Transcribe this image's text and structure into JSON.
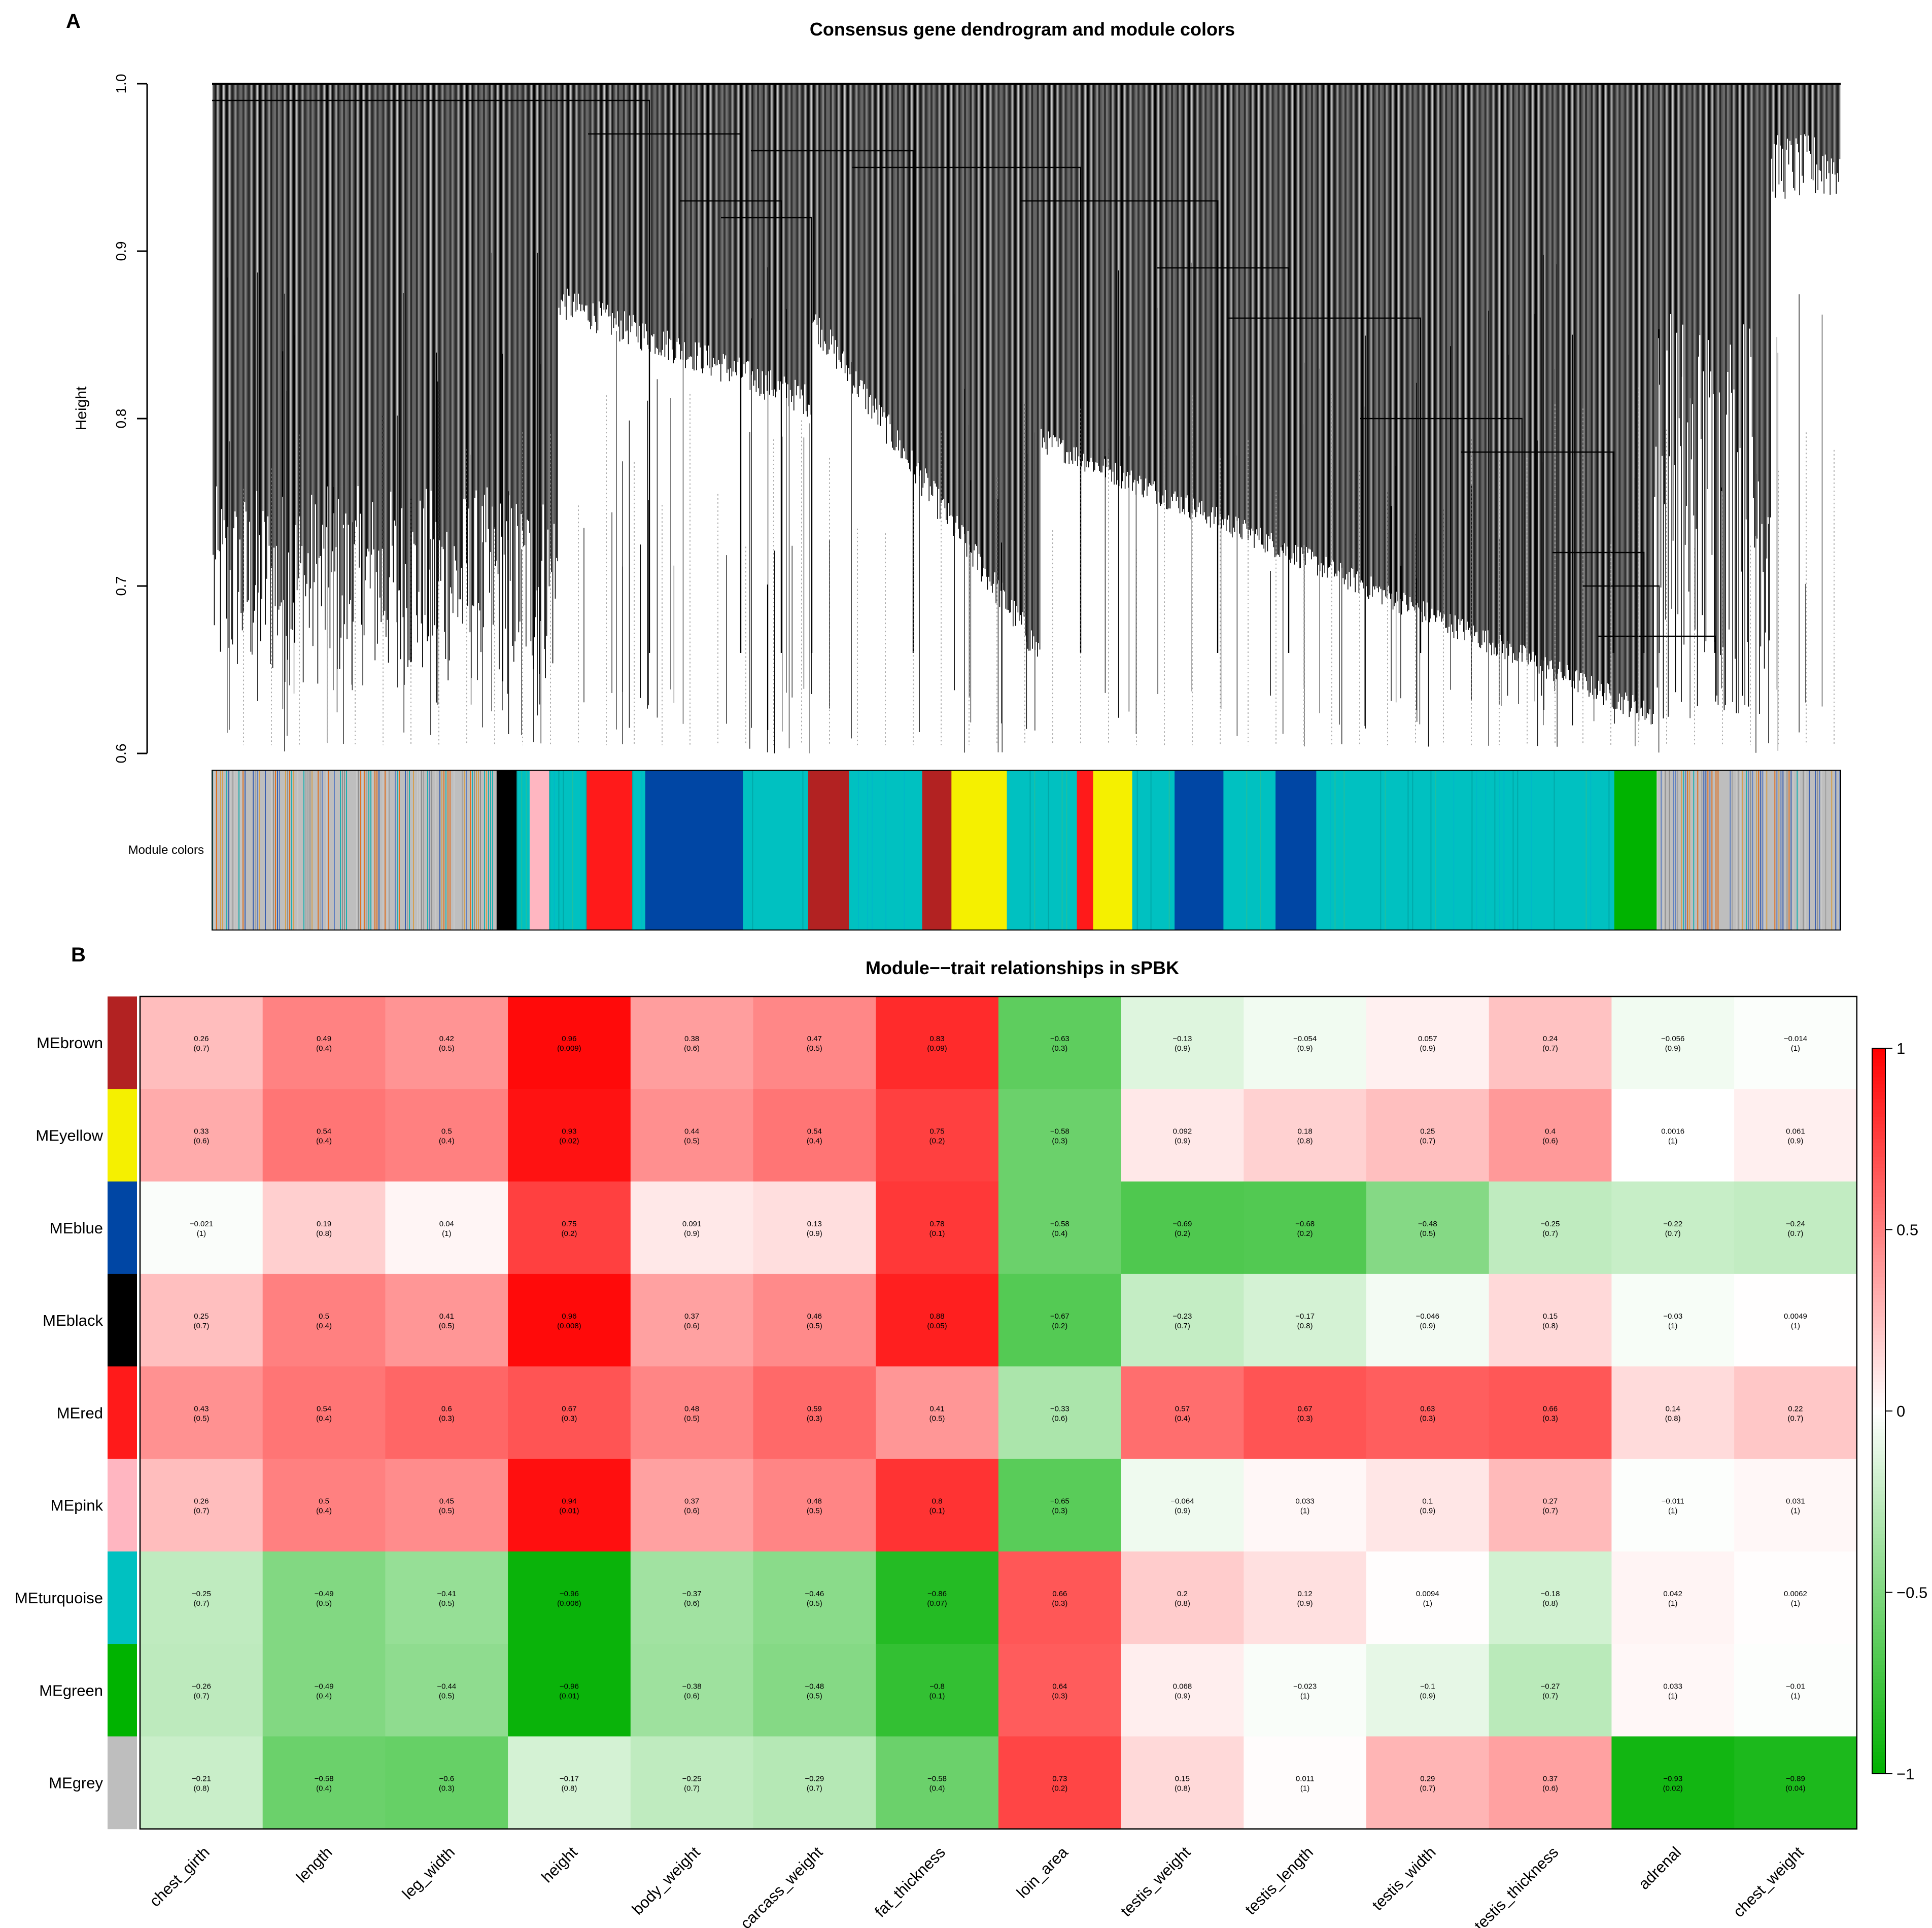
{
  "panel_a": {
    "letter": "A",
    "title": "Consensus gene dendrogram and module colors",
    "ylabel": "Height",
    "yticks": [
      "0.6",
      "0.7",
      "0.8",
      "0.9",
      "1.0"
    ],
    "module_colors_label": "Module colors"
  },
  "panel_b": {
    "letter": "B",
    "title": "Module−−trait relationships in sPBK"
  },
  "colors": {
    "brown": "#b22222",
    "yellow": "#f5f000",
    "blue": "#0046a4",
    "black": "#000000",
    "red": "#ff1a1a",
    "pink": "#ffb6c1",
    "turquoise": "#00c1c1",
    "green": "#00b300",
    "grey": "#bebebe",
    "heat_high": "#ff0000",
    "heat_mid": "#ffffff",
    "heat_low": "#00b000"
  },
  "chart_data": [
    {
      "type": "dendrogram",
      "title": "Consensus gene dendrogram and module colors",
      "ylabel": "Height",
      "ylim": [
        0.6,
        1.0
      ],
      "module_color_bands": [
        {
          "color": "grey",
          "width": 0.175
        },
        {
          "color": "black",
          "width": 0.012
        },
        {
          "color": "turquoise",
          "width": 0.008
        },
        {
          "color": "pink",
          "width": 0.012
        },
        {
          "color": "turquoise",
          "width": 0.023
        },
        {
          "color": "red",
          "width": 0.028
        },
        {
          "color": "turquoise",
          "width": 0.008
        },
        {
          "color": "blue",
          "width": 0.06
        },
        {
          "color": "turquoise",
          "width": 0.04
        },
        {
          "color": "brown",
          "width": 0.025
        },
        {
          "color": "turquoise",
          "width": 0.045
        },
        {
          "color": "brown",
          "width": 0.018
        },
        {
          "color": "yellow",
          "width": 0.034
        },
        {
          "color": "turquoise",
          "width": 0.043
        },
        {
          "color": "red",
          "width": 0.01
        },
        {
          "color": "yellow",
          "width": 0.024
        },
        {
          "color": "turquoise",
          "width": 0.026
        },
        {
          "color": "blue",
          "width": 0.03
        },
        {
          "color": "turquoise",
          "width": 0.032
        },
        {
          "color": "blue",
          "width": 0.025
        },
        {
          "color": "turquoise",
          "width": 0.183
        },
        {
          "color": "green",
          "width": 0.026
        },
        {
          "color": "grey",
          "width": 0.113
        }
      ]
    },
    {
      "type": "heatmap",
      "title": "Module−−trait relationships in sPBK",
      "rows": [
        "MEbrown",
        "MEyellow",
        "MEblue",
        "MEblack",
        "MEred",
        "MEpink",
        "MEturquoise",
        "MEgreen",
        "MEgrey"
      ],
      "row_colors": [
        "brown",
        "yellow",
        "blue",
        "black",
        "red",
        "pink",
        "turquoise",
        "green",
        "grey"
      ],
      "columns": [
        "chest_girth",
        "length",
        "leg_width",
        "height",
        "body_weight",
        "carcass_weight",
        "fat_thickness",
        "loin_area",
        "testis_weight",
        "testis_length",
        "testis_width",
        "testis_thickness",
        "adrenal",
        "chest_weight"
      ],
      "values": [
        [
          0.26,
          0.49,
          0.42,
          0.96,
          0.38,
          0.47,
          0.83,
          -0.63,
          -0.13,
          -0.054,
          0.057,
          0.24,
          -0.056,
          -0.014
        ],
        [
          0.33,
          0.54,
          0.5,
          0.93,
          0.44,
          0.54,
          0.75,
          -0.58,
          0.092,
          0.18,
          0.25,
          0.4,
          0.0016,
          0.061
        ],
        [
          -0.021,
          0.19,
          0.04,
          0.75,
          0.091,
          0.13,
          0.78,
          -0.58,
          -0.69,
          -0.68,
          -0.48,
          -0.25,
          -0.22,
          -0.24
        ],
        [
          0.25,
          0.5,
          0.41,
          0.96,
          0.37,
          0.46,
          0.88,
          -0.67,
          -0.23,
          -0.17,
          -0.046,
          0.15,
          -0.03,
          0.0049
        ],
        [
          0.43,
          0.54,
          0.6,
          0.67,
          0.48,
          0.59,
          0.41,
          -0.33,
          0.57,
          0.67,
          0.63,
          0.66,
          0.14,
          0.22
        ],
        [
          0.26,
          0.5,
          0.45,
          0.94,
          0.37,
          0.48,
          0.8,
          -0.65,
          -0.064,
          0.033,
          0.1,
          0.27,
          -0.011,
          0.031
        ],
        [
          -0.25,
          -0.49,
          -0.41,
          -0.96,
          -0.37,
          -0.46,
          -0.86,
          0.66,
          0.2,
          0.12,
          0.0094,
          -0.18,
          0.042,
          0.0062
        ],
        [
          -0.26,
          -0.49,
          -0.44,
          -0.96,
          -0.38,
          -0.48,
          -0.8,
          0.64,
          0.068,
          -0.023,
          -0.1,
          -0.27,
          0.033,
          -0.01
        ],
        [
          -0.21,
          -0.58,
          -0.6,
          -0.17,
          -0.25,
          -0.29,
          -0.58,
          0.73,
          0.15,
          0.011,
          0.29,
          0.37,
          -0.93,
          -0.89
        ]
      ],
      "value_labels": [
        [
          "0.26",
          "0.49",
          "0.42",
          "0.96",
          "0.38",
          "0.47",
          "0.83",
          "−0.63",
          "−0.13",
          "−0.054",
          "0.057",
          "0.24",
          "−0.056",
          "−0.014"
        ],
        [
          "0.33",
          "0.54",
          "0.5",
          "0.93",
          "0.44",
          "0.54",
          "0.75",
          "−0.58",
          "0.092",
          "0.18",
          "0.25",
          "0.4",
          "0.0016",
          "0.061"
        ],
        [
          "−0.021",
          "0.19",
          "0.04",
          "0.75",
          "0.091",
          "0.13",
          "0.78",
          "−0.58",
          "−0.69",
          "−0.68",
          "−0.48",
          "−0.25",
          "−0.22",
          "−0.24"
        ],
        [
          "0.25",
          "0.5",
          "0.41",
          "0.96",
          "0.37",
          "0.46",
          "0.88",
          "−0.67",
          "−0.23",
          "−0.17",
          "−0.046",
          "0.15",
          "−0.03",
          "0.0049"
        ],
        [
          "0.43",
          "0.54",
          "0.6",
          "0.67",
          "0.48",
          "0.59",
          "0.41",
          "−0.33",
          "0.57",
          "0.67",
          "0.63",
          "0.66",
          "0.14",
          "0.22"
        ],
        [
          "0.26",
          "0.5",
          "0.45",
          "0.94",
          "0.37",
          "0.48",
          "0.8",
          "−0.65",
          "−0.064",
          "0.033",
          "0.1",
          "0.27",
          "−0.011",
          "0.031"
        ],
        [
          "−0.25",
          "−0.49",
          "−0.41",
          "−0.96",
          "−0.37",
          "−0.46",
          "−0.86",
          "0.66",
          "0.2",
          "0.12",
          "0.0094",
          "−0.18",
          "0.042",
          "0.0062"
        ],
        [
          "−0.26",
          "−0.49",
          "−0.44",
          "−0.96",
          "−0.38",
          "−0.48",
          "−0.8",
          "0.64",
          "0.068",
          "−0.023",
          "−0.1",
          "−0.27",
          "0.033",
          "−0.01"
        ],
        [
          "−0.21",
          "−0.58",
          "−0.6",
          "−0.17",
          "−0.25",
          "−0.29",
          "−0.58",
          "0.73",
          "0.15",
          "0.011",
          "0.29",
          "0.37",
          "−0.93",
          "−0.89"
        ]
      ],
      "pvalues": [
        [
          "(0.7)",
          "(0.4)",
          "(0.5)",
          "(0.009)",
          "(0.6)",
          "(0.5)",
          "(0.09)",
          "(0.3)",
          "(0.9)",
          "(0.9)",
          "(0.9)",
          "(0.7)",
          "(0.9)",
          "(1)"
        ],
        [
          "(0.6)",
          "(0.4)",
          "(0.4)",
          "(0.02)",
          "(0.5)",
          "(0.4)",
          "(0.2)",
          "(0.3)",
          "(0.9)",
          "(0.8)",
          "(0.7)",
          "(0.6)",
          "(1)",
          "(0.9)"
        ],
        [
          "(1)",
          "(0.8)",
          "(1)",
          "(0.2)",
          "(0.9)",
          "(0.9)",
          "(0.1)",
          "(0.4)",
          "(0.2)",
          "(0.2)",
          "(0.5)",
          "(0.7)",
          "(0.7)",
          "(0.7)"
        ],
        [
          "(0.7)",
          "(0.4)",
          "(0.5)",
          "(0.008)",
          "(0.6)",
          "(0.5)",
          "(0.05)",
          "(0.2)",
          "(0.7)",
          "(0.8)",
          "(0.9)",
          "(0.8)",
          "(1)",
          "(1)"
        ],
        [
          "(0.5)",
          "(0.4)",
          "(0.3)",
          "(0.3)",
          "(0.5)",
          "(0.3)",
          "(0.5)",
          "(0.6)",
          "(0.4)",
          "(0.3)",
          "(0.3)",
          "(0.3)",
          "(0.8)",
          "(0.7)"
        ],
        [
          "(0.7)",
          "(0.4)",
          "(0.5)",
          "(0.01)",
          "(0.6)",
          "(0.5)",
          "(0.1)",
          "(0.3)",
          "(0.9)",
          "(1)",
          "(0.9)",
          "(0.7)",
          "(1)",
          "(1)"
        ],
        [
          "(0.7)",
          "(0.5)",
          "(0.5)",
          "(0.006)",
          "(0.6)",
          "(0.5)",
          "(0.07)",
          "(0.3)",
          "(0.8)",
          "(0.9)",
          "(1)",
          "(0.8)",
          "(1)",
          "(1)"
        ],
        [
          "(0.7)",
          "(0.4)",
          "(0.5)",
          "(0.01)",
          "(0.6)",
          "(0.5)",
          "(0.1)",
          "(0.3)",
          "(0.9)",
          "(1)",
          "(0.9)",
          "(0.7)",
          "(1)",
          "(1)"
        ],
        [
          "(0.8)",
          "(0.4)",
          "(0.3)",
          "(0.8)",
          "(0.7)",
          "(0.7)",
          "(0.4)",
          "(0.2)",
          "(0.8)",
          "(1)",
          "(0.7)",
          "(0.6)",
          "(0.02)",
          "(0.04)"
        ]
      ],
      "color_scale": {
        "min": -1,
        "max": 1,
        "ticks": [
          "−1",
          "−0.5",
          "0",
          "0.5",
          "1"
        ]
      }
    }
  ]
}
